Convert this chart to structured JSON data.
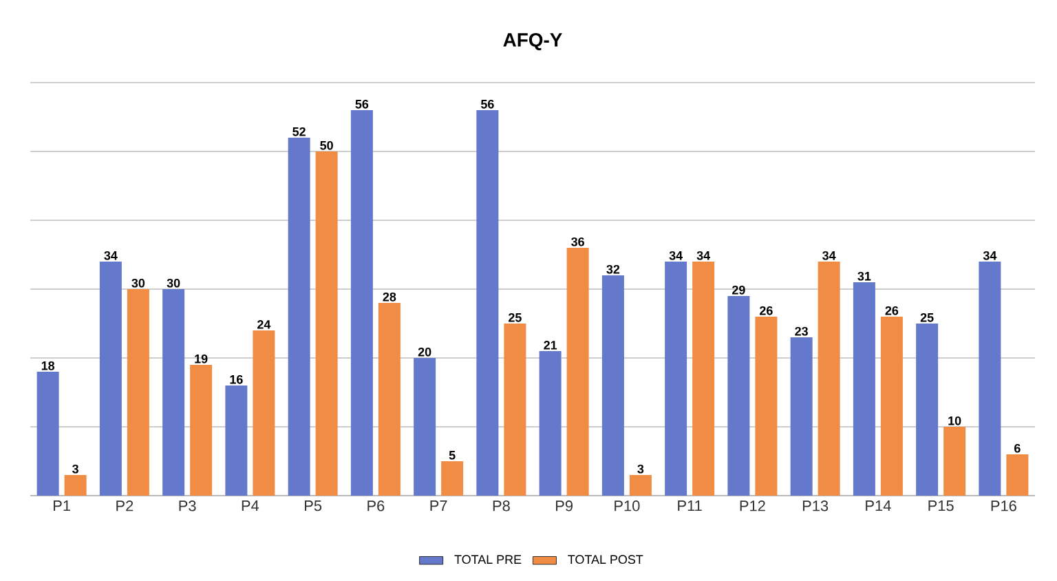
{
  "chart_data": {
    "type": "bar",
    "title": "AFQ-Y",
    "categories": [
      "P1",
      "P2",
      "P3",
      "P4",
      "P5",
      "P6",
      "P7",
      "P8",
      "P9",
      "P10",
      "P11",
      "P12",
      "P13",
      "P14",
      "P15",
      "P16"
    ],
    "series": [
      {
        "name": "TOTAL PRE",
        "color": "#6478cc",
        "values": [
          18,
          34,
          30,
          16,
          52,
          56,
          20,
          56,
          21,
          32,
          34,
          29,
          23,
          31,
          25,
          34
        ]
      },
      {
        "name": "TOTAL POST",
        "color": "#f08c44",
        "values": [
          3,
          30,
          19,
          24,
          50,
          28,
          5,
          25,
          36,
          3,
          34,
          26,
          34,
          26,
          10,
          6
        ]
      }
    ],
    "ylim": [
      0,
      60
    ],
    "yticks": [
      {
        "value": 0,
        "label": null
      },
      {
        "value": 10,
        "label": null
      },
      {
        "value": 20,
        "label": null
      },
      {
        "value": 30,
        "label": null
      },
      {
        "value": 40,
        "label": null
      },
      {
        "value": 50,
        "label": null
      },
      {
        "value": 60,
        "label": null
      }
    ],
    "grid": "y",
    "legend": "bottom",
    "data_labels": true
  }
}
